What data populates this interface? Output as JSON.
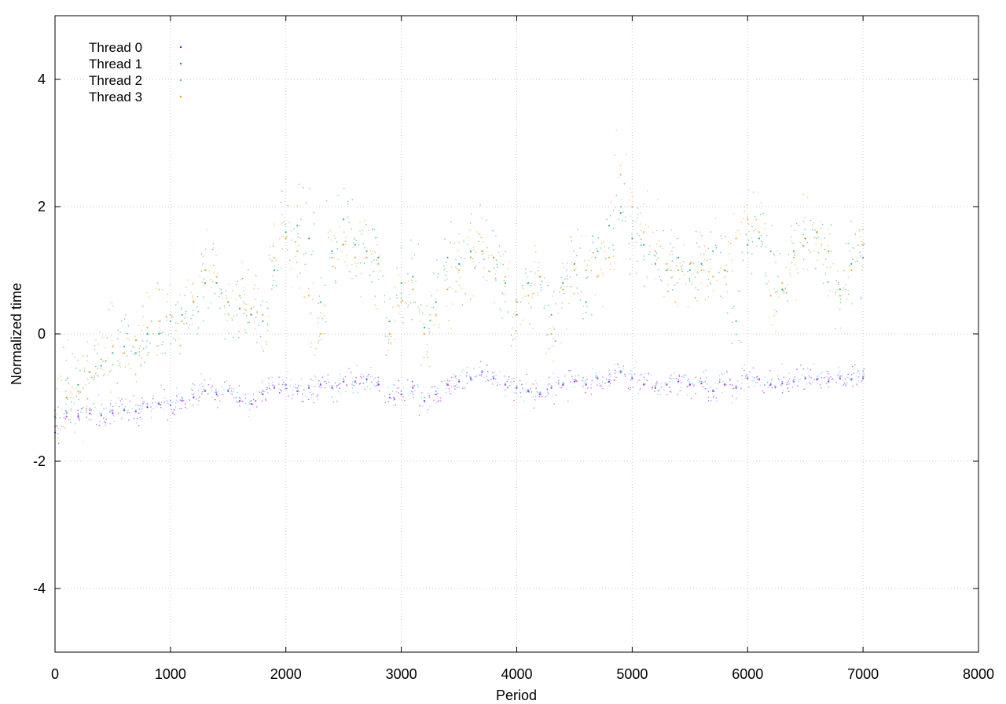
{
  "chart_data": {
    "type": "scatter",
    "title": "",
    "xlabel": "Period",
    "ylabel": "Normalized time",
    "xlim": [
      0,
      8000
    ],
    "ylim": [
      -5,
      5
    ],
    "x_ticks": [
      0,
      1000,
      2000,
      3000,
      4000,
      5000,
      6000,
      7000,
      8000
    ],
    "x_tick_labels": [
      "0",
      "1000",
      "2000",
      "3000",
      "4000",
      "5000",
      "6000",
      "7000",
      "8000"
    ],
    "y_ticks": [
      -4,
      -2,
      0,
      2,
      4
    ],
    "y_tick_labels": [
      "-4",
      "-2",
      "0",
      "2",
      "4"
    ],
    "grid": true,
    "legend_position": "top-left",
    "series": [
      {
        "name": "Thread 0",
        "color": "#9400d3",
        "band": "low",
        "points": [
          [
            0,
            -1.55
          ],
          [
            100,
            -1.3
          ],
          [
            200,
            -1.3
          ],
          [
            300,
            -1.25
          ],
          [
            400,
            -1.28
          ],
          [
            500,
            -1.25
          ],
          [
            600,
            -1.2
          ],
          [
            700,
            -1.22
          ],
          [
            800,
            -1.15
          ],
          [
            900,
            -1.1
          ],
          [
            1000,
            -1.12
          ],
          [
            1100,
            -1.05
          ],
          [
            1200,
            -1.0
          ],
          [
            1300,
            -0.9
          ],
          [
            1400,
            -0.95
          ],
          [
            1500,
            -0.9
          ],
          [
            1600,
            -1.05
          ],
          [
            1700,
            -1.1
          ],
          [
            1800,
            -0.95
          ],
          [
            1900,
            -0.85
          ],
          [
            2000,
            -0.8
          ],
          [
            2100,
            -0.9
          ],
          [
            2200,
            -0.85
          ],
          [
            2300,
            -0.8
          ],
          [
            2400,
            -0.85
          ],
          [
            2500,
            -0.75
          ],
          [
            2600,
            -0.75
          ],
          [
            2700,
            -0.72
          ],
          [
            2800,
            -0.8
          ],
          [
            2900,
            -1.0
          ],
          [
            3000,
            -0.95
          ],
          [
            3100,
            -0.85
          ],
          [
            3200,
            -1.05
          ],
          [
            3300,
            -0.95
          ],
          [
            3400,
            -0.8
          ],
          [
            3500,
            -0.75
          ],
          [
            3600,
            -0.7
          ],
          [
            3700,
            -0.6
          ],
          [
            3800,
            -0.7
          ],
          [
            3900,
            -0.8
          ],
          [
            4000,
            -0.85
          ],
          [
            4100,
            -0.9
          ],
          [
            4200,
            -0.95
          ],
          [
            4300,
            -0.85
          ],
          [
            4400,
            -0.8
          ],
          [
            4500,
            -0.75
          ],
          [
            4600,
            -0.8
          ],
          [
            4700,
            -0.7
          ],
          [
            4800,
            -0.75
          ],
          [
            4900,
            -0.6
          ],
          [
            5000,
            -0.7
          ],
          [
            5100,
            -0.8
          ],
          [
            5200,
            -0.85
          ],
          [
            5300,
            -0.8
          ],
          [
            5400,
            -0.75
          ],
          [
            5500,
            -0.8
          ],
          [
            5600,
            -0.78
          ],
          [
            5700,
            -0.9
          ],
          [
            5800,
            -0.8
          ],
          [
            5900,
            -0.85
          ],
          [
            6000,
            -0.7
          ],
          [
            6100,
            -0.72
          ],
          [
            6200,
            -0.8
          ],
          [
            6300,
            -0.78
          ],
          [
            6400,
            -0.75
          ],
          [
            6500,
            -0.7
          ],
          [
            6600,
            -0.72
          ],
          [
            6700,
            -0.75
          ],
          [
            6800,
            -0.7
          ],
          [
            6900,
            -0.72
          ],
          [
            7000,
            -0.7
          ]
        ]
      },
      {
        "name": "Thread 1",
        "color": "#009e73",
        "band": "high",
        "points": [
          [
            0,
            -1.3
          ],
          [
            100,
            -1.0
          ],
          [
            200,
            -0.8
          ],
          [
            300,
            -0.6
          ],
          [
            400,
            -0.5
          ],
          [
            500,
            -0.3
          ],
          [
            600,
            -0.2
          ],
          [
            700,
            -0.3
          ],
          [
            800,
            0.0
          ],
          [
            900,
            0.0
          ],
          [
            1000,
            0.2
          ],
          [
            1100,
            0.3
          ],
          [
            1200,
            0.5
          ],
          [
            1300,
            0.8
          ],
          [
            1400,
            0.8
          ],
          [
            1500,
            0.5
          ],
          [
            1600,
            0.4
          ],
          [
            1700,
            0.3
          ],
          [
            1800,
            0.2
          ],
          [
            1900,
            1.0
          ],
          [
            2000,
            1.6
          ],
          [
            2100,
            1.7
          ],
          [
            2200,
            1.5
          ],
          [
            2300,
            0.5
          ],
          [
            2400,
            1.3
          ],
          [
            2500,
            1.8
          ],
          [
            2600,
            1.4
          ],
          [
            2700,
            1.3
          ],
          [
            2800,
            1.2
          ],
          [
            2900,
            0.2
          ],
          [
            3000,
            0.8
          ],
          [
            3100,
            0.9
          ],
          [
            3200,
            0.1
          ],
          [
            3300,
            0.5
          ],
          [
            3400,
            1.2
          ],
          [
            3500,
            1.1
          ],
          [
            3600,
            1.3
          ],
          [
            3700,
            1.3
          ],
          [
            3800,
            1.2
          ],
          [
            3900,
            0.8
          ],
          [
            4000,
            0.3
          ],
          [
            4100,
            0.8
          ],
          [
            4200,
            0.9
          ],
          [
            4300,
            0.3
          ],
          [
            4400,
            0.8
          ],
          [
            4500,
            1.1
          ],
          [
            4600,
            0.5
          ],
          [
            4700,
            1.3
          ],
          [
            4800,
            1.7
          ],
          [
            4900,
            1.9
          ],
          [
            5000,
            1.5
          ],
          [
            5100,
            1.4
          ],
          [
            5200,
            1.1
          ],
          [
            5300,
            1.0
          ],
          [
            5400,
            1.2
          ],
          [
            5500,
            1.0
          ],
          [
            5600,
            1.1
          ],
          [
            5700,
            1.3
          ],
          [
            5800,
            1.0
          ],
          [
            5900,
            0.2
          ],
          [
            6000,
            1.4
          ],
          [
            6100,
            1.5
          ],
          [
            6200,
            1.3
          ],
          [
            6300,
            0.7
          ],
          [
            6400,
            1.3
          ],
          [
            6500,
            1.5
          ],
          [
            6600,
            1.6
          ],
          [
            6700,
            1.3
          ],
          [
            6800,
            0.7
          ],
          [
            6900,
            1.1
          ],
          [
            7000,
            1.2
          ]
        ]
      },
      {
        "name": "Thread 2",
        "color": "#56b4e9",
        "band": "mixed",
        "points": [
          [
            0,
            -1.45
          ],
          [
            100,
            -1.25
          ],
          [
            200,
            -1.28
          ],
          [
            300,
            -1.2
          ],
          [
            400,
            -1.25
          ],
          [
            500,
            -1.2
          ],
          [
            600,
            -1.18
          ],
          [
            700,
            -1.2
          ],
          [
            800,
            -1.1
          ],
          [
            900,
            -1.08
          ],
          [
            1000,
            -1.05
          ],
          [
            1100,
            -1.0
          ],
          [
            1200,
            -0.95
          ],
          [
            1300,
            -0.88
          ],
          [
            1400,
            -0.92
          ],
          [
            1500,
            -0.88
          ],
          [
            1600,
            -1.0
          ],
          [
            1700,
            -1.05
          ],
          [
            1800,
            -0.9
          ],
          [
            1900,
            -0.82
          ],
          [
            2000,
            -0.8
          ],
          [
            2100,
            -0.85
          ],
          [
            2200,
            -0.82
          ],
          [
            2300,
            -0.78
          ],
          [
            2400,
            -0.82
          ],
          [
            2500,
            -0.72
          ],
          [
            2600,
            -0.74
          ],
          [
            2700,
            -0.7
          ],
          [
            2800,
            -0.78
          ],
          [
            2900,
            -0.95
          ],
          [
            3000,
            -0.9
          ],
          [
            3100,
            -0.82
          ],
          [
            3200,
            -1.0
          ],
          [
            3300,
            -0.9
          ],
          [
            3400,
            -0.78
          ],
          [
            3500,
            -0.72
          ],
          [
            3600,
            -0.68
          ],
          [
            3700,
            -0.58
          ],
          [
            3800,
            -0.68
          ],
          [
            3900,
            -0.78
          ],
          [
            4000,
            -0.82
          ],
          [
            4100,
            -0.88
          ],
          [
            4200,
            -0.92
          ],
          [
            4300,
            -0.82
          ],
          [
            4400,
            -0.78
          ],
          [
            4500,
            -0.72
          ],
          [
            4600,
            -0.78
          ],
          [
            4700,
            -0.68
          ],
          [
            4800,
            -0.72
          ],
          [
            4900,
            -0.58
          ],
          [
            5000,
            -0.68
          ],
          [
            5100,
            -0.78
          ],
          [
            5200,
            -0.82
          ],
          [
            5300,
            -0.78
          ],
          [
            5400,
            -0.72
          ],
          [
            5500,
            -0.78
          ],
          [
            5600,
            -0.75
          ],
          [
            5700,
            -0.88
          ],
          [
            5800,
            -0.78
          ],
          [
            5900,
            -0.82
          ],
          [
            6000,
            -0.68
          ],
          [
            6100,
            -0.7
          ],
          [
            6200,
            -0.78
          ],
          [
            6300,
            -0.75
          ],
          [
            6400,
            -0.72
          ],
          [
            6500,
            -0.68
          ],
          [
            6600,
            -0.7
          ],
          [
            6700,
            -0.72
          ],
          [
            6800,
            -0.68
          ],
          [
            6900,
            -0.7
          ],
          [
            7000,
            -0.68
          ]
        ]
      },
      {
        "name": "Thread 3",
        "color": "#e69f00",
        "band": "high",
        "points": [
          [
            0,
            -1.2
          ],
          [
            100,
            -1.0
          ],
          [
            200,
            -0.9
          ],
          [
            300,
            -0.6
          ],
          [
            400,
            -0.4
          ],
          [
            500,
            -0.2
          ],
          [
            600,
            -0.3
          ],
          [
            700,
            -0.1
          ],
          [
            800,
            0.1
          ],
          [
            900,
            0.2
          ],
          [
            1000,
            0.3
          ],
          [
            1100,
            0.2
          ],
          [
            1200,
            0.5
          ],
          [
            1300,
            1.0
          ],
          [
            1400,
            0.9
          ],
          [
            1500,
            0.5
          ],
          [
            1600,
            0.6
          ],
          [
            1700,
            0.4
          ],
          [
            1800,
            0.3
          ],
          [
            1900,
            1.2
          ],
          [
            2000,
            1.5
          ],
          [
            2100,
            1.3
          ],
          [
            2200,
            0.6
          ],
          [
            2300,
            0.0
          ],
          [
            2400,
            1.2
          ],
          [
            2500,
            1.4
          ],
          [
            2600,
            1.2
          ],
          [
            2700,
            1.2
          ],
          [
            2800,
            1.1
          ],
          [
            2900,
            0.0
          ],
          [
            3000,
            0.5
          ],
          [
            3100,
            0.7
          ],
          [
            3200,
            0.0
          ],
          [
            3300,
            0.3
          ],
          [
            3400,
            0.7
          ],
          [
            3500,
            1.0
          ],
          [
            3600,
            1.2
          ],
          [
            3700,
            1.3
          ],
          [
            3800,
            1.2
          ],
          [
            3900,
            0.9
          ],
          [
            4000,
            0.5
          ],
          [
            4100,
            0.6
          ],
          [
            4200,
            0.9
          ],
          [
            4300,
            0.0
          ],
          [
            4400,
            0.7
          ],
          [
            4500,
            1.0
          ],
          [
            4600,
            1.0
          ],
          [
            4700,
            0.9
          ],
          [
            4800,
            1.2
          ],
          [
            4900,
            2.5
          ],
          [
            5000,
            2.0
          ],
          [
            5100,
            1.6
          ],
          [
            5200,
            1.3
          ],
          [
            5300,
            1.1
          ],
          [
            5400,
            1.0
          ],
          [
            5500,
            1.1
          ],
          [
            5600,
            1.0
          ],
          [
            5700,
            0.9
          ],
          [
            5800,
            1.0
          ],
          [
            5900,
            1.5
          ],
          [
            6000,
            1.8
          ],
          [
            6100,
            1.6
          ],
          [
            6200,
            0.6
          ],
          [
            6300,
            0.8
          ],
          [
            6400,
            1.2
          ],
          [
            6500,
            1.5
          ],
          [
            6600,
            1.6
          ],
          [
            6700,
            1.3
          ],
          [
            6800,
            0.6
          ],
          [
            6900,
            1.0
          ],
          [
            7000,
            1.4
          ]
        ]
      }
    ]
  }
}
